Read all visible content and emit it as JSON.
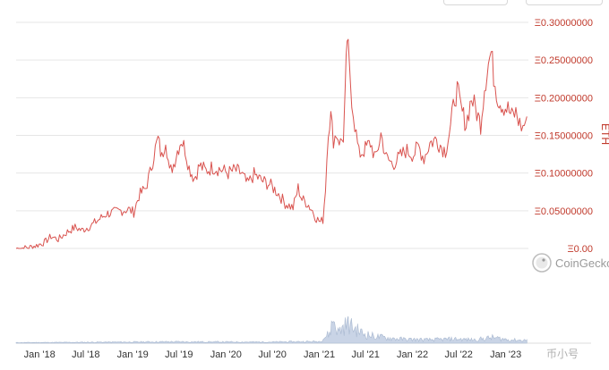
{
  "colors": {
    "line": "#d9534f",
    "grid": "#e6e6e6",
    "axis_text": "#c0392b",
    "volume": "#c9d4e6",
    "volume_stroke": "#a8b8d0",
    "watermark": "#9a9a9a"
  },
  "watermark": {
    "brand": "CoinGecko",
    "logo_icon": "gecko-logo-icon",
    "corner_brand": "币小号"
  },
  "chart_data": {
    "type": "line",
    "title": "",
    "xlabel": "",
    "ylabel": "ETH",
    "ylim": [
      0,
      0.3
    ],
    "xlim": [
      "2017-10-01",
      "2023-03-31"
    ],
    "y_ticks": [
      {
        "value": 0.3,
        "label": "Ξ0.30000000"
      },
      {
        "value": 0.25,
        "label": "Ξ0.25000000"
      },
      {
        "value": 0.2,
        "label": "Ξ0.20000000"
      },
      {
        "value": 0.15,
        "label": "Ξ0.15000000"
      },
      {
        "value": 0.1,
        "label": "Ξ0.10000000"
      },
      {
        "value": 0.05,
        "label": "Ξ0.05000000"
      },
      {
        "value": 0,
        "label": "Ξ0.00"
      }
    ],
    "x_ticks": [
      {
        "date": "2018-01-01",
        "label": "Jan '18"
      },
      {
        "date": "2018-07-01",
        "label": "Jul '18"
      },
      {
        "date": "2019-01-01",
        "label": "Jan '19"
      },
      {
        "date": "2019-07-01",
        "label": "Jul '19"
      },
      {
        "date": "2020-01-01",
        "label": "Jan '20"
      },
      {
        "date": "2020-07-01",
        "label": "Jul '20"
      },
      {
        "date": "2021-01-01",
        "label": "Jan '21"
      },
      {
        "date": "2021-07-01",
        "label": "Jul '21"
      },
      {
        "date": "2022-01-01",
        "label": "Jan '22"
      },
      {
        "date": "2022-07-01",
        "label": "Jul '22"
      },
      {
        "date": "2023-01-01",
        "label": "Jan '23"
      }
    ],
    "grid": true,
    "series": [
      {
        "values": [
          [
            "2017-10-01",
            0.0
          ],
          [
            "2017-11-15",
            0.001
          ],
          [
            "2017-12-20",
            0.004
          ],
          [
            "2018-01-20",
            0.008
          ],
          [
            "2018-02-15",
            0.016
          ],
          [
            "2018-03-15",
            0.012
          ],
          [
            "2018-04-20",
            0.022
          ],
          [
            "2018-05-20",
            0.028
          ],
          [
            "2018-06-15",
            0.024
          ],
          [
            "2018-07-20",
            0.03
          ],
          [
            "2018-08-20",
            0.038
          ],
          [
            "2018-09-20",
            0.046
          ],
          [
            "2018-10-20",
            0.048
          ],
          [
            "2018-11-15",
            0.05
          ],
          [
            "2018-12-15",
            0.052
          ],
          [
            "2019-01-05",
            0.048
          ],
          [
            "2019-01-25",
            0.07
          ],
          [
            "2019-02-20",
            0.08
          ],
          [
            "2019-03-10",
            0.1
          ],
          [
            "2019-03-25",
            0.125
          ],
          [
            "2019-04-10",
            0.145
          ],
          [
            "2019-04-25",
            0.12
          ],
          [
            "2019-05-10",
            0.148
          ],
          [
            "2019-05-25",
            0.1
          ],
          [
            "2019-06-10",
            0.112
          ],
          [
            "2019-06-25",
            0.13
          ],
          [
            "2019-07-10",
            0.145
          ],
          [
            "2019-07-25",
            0.132
          ],
          [
            "2019-08-10",
            0.107
          ],
          [
            "2019-08-30",
            0.093
          ],
          [
            "2019-09-20",
            0.11
          ],
          [
            "2019-10-15",
            0.103
          ],
          [
            "2019-11-10",
            0.108
          ],
          [
            "2019-12-10",
            0.105
          ],
          [
            "2020-01-10",
            0.1
          ],
          [
            "2020-02-05",
            0.104
          ],
          [
            "2020-03-01",
            0.1
          ],
          [
            "2020-03-25",
            0.085
          ],
          [
            "2020-04-20",
            0.098
          ],
          [
            "2020-05-20",
            0.09
          ],
          [
            "2020-06-20",
            0.085
          ],
          [
            "2020-07-20",
            0.075
          ],
          [
            "2020-08-20",
            0.06
          ],
          [
            "2020-09-20",
            0.054
          ],
          [
            "2020-10-10",
            0.08
          ],
          [
            "2020-10-25",
            0.065
          ],
          [
            "2020-11-15",
            0.06
          ],
          [
            "2020-12-05",
            0.05
          ],
          [
            "2020-12-20",
            0.04
          ],
          [
            "2021-01-05",
            0.035
          ],
          [
            "2021-01-15",
            0.038
          ],
          [
            "2021-01-25",
            0.08
          ],
          [
            "2021-02-05",
            0.16
          ],
          [
            "2021-02-15",
            0.175
          ],
          [
            "2021-02-25",
            0.145
          ],
          [
            "2021-03-10",
            0.152
          ],
          [
            "2021-03-25",
            0.14
          ],
          [
            "2021-04-05",
            0.148
          ],
          [
            "2021-04-12",
            0.2
          ],
          [
            "2021-04-20",
            0.28
          ],
          [
            "2021-04-28",
            0.24
          ],
          [
            "2021-05-08",
            0.2
          ],
          [
            "2021-05-20",
            0.165
          ],
          [
            "2021-06-05",
            0.125
          ],
          [
            "2021-06-25",
            0.13
          ],
          [
            "2021-07-20",
            0.14
          ],
          [
            "2021-08-10",
            0.118
          ],
          [
            "2021-08-30",
            0.152
          ],
          [
            "2021-09-20",
            0.12
          ],
          [
            "2021-10-15",
            0.112
          ],
          [
            "2021-11-10",
            0.12
          ],
          [
            "2021-12-05",
            0.13
          ],
          [
            "2022-01-05",
            0.125
          ],
          [
            "2022-01-25",
            0.135
          ],
          [
            "2022-02-15",
            0.12
          ],
          [
            "2022-03-10",
            0.14
          ],
          [
            "2022-04-05",
            0.145
          ],
          [
            "2022-04-25",
            0.135
          ],
          [
            "2022-05-10",
            0.13
          ],
          [
            "2022-05-30",
            0.16
          ],
          [
            "2022-06-15",
            0.2
          ],
          [
            "2022-06-25",
            0.21
          ],
          [
            "2022-07-10",
            0.185
          ],
          [
            "2022-07-30",
            0.165
          ],
          [
            "2022-08-20",
            0.2
          ],
          [
            "2022-09-05",
            0.185
          ],
          [
            "2022-09-25",
            0.165
          ],
          [
            "2022-10-10",
            0.215
          ],
          [
            "2022-10-25",
            0.245
          ],
          [
            "2022-11-05",
            0.26
          ],
          [
            "2022-11-15",
            0.23
          ],
          [
            "2022-12-01",
            0.2
          ],
          [
            "2022-12-20",
            0.19
          ],
          [
            "2023-01-10",
            0.185
          ],
          [
            "2023-01-25",
            0.175
          ],
          [
            "2023-02-10",
            0.18
          ],
          [
            "2023-02-25",
            0.165
          ],
          [
            "2023-03-10",
            0.16
          ],
          [
            "2023-03-25",
            0.175
          ]
        ]
      }
    ],
    "volume": {
      "type": "area",
      "values": [
        [
          "2017-10-01",
          0.02
        ],
        [
          "2018-06-01",
          0.03
        ],
        [
          "2019-06-01",
          0.05
        ],
        [
          "2020-06-01",
          0.04
        ],
        [
          "2021-01-01",
          0.06
        ],
        [
          "2021-02-10",
          0.35
        ],
        [
          "2021-02-25",
          0.9
        ],
        [
          "2021-03-15",
          0.4
        ],
        [
          "2021-04-20",
          0.7
        ],
        [
          "2021-05-15",
          0.55
        ],
        [
          "2021-06-20",
          0.35
        ],
        [
          "2021-08-01",
          0.25
        ],
        [
          "2021-10-01",
          0.18
        ],
        [
          "2021-12-01",
          0.14
        ],
        [
          "2022-03-01",
          0.12
        ],
        [
          "2022-06-15",
          0.15
        ],
        [
          "2022-09-01",
          0.12
        ],
        [
          "2022-11-10",
          0.2
        ],
        [
          "2023-01-15",
          0.12
        ],
        [
          "2023-03-25",
          0.1
        ]
      ]
    }
  }
}
